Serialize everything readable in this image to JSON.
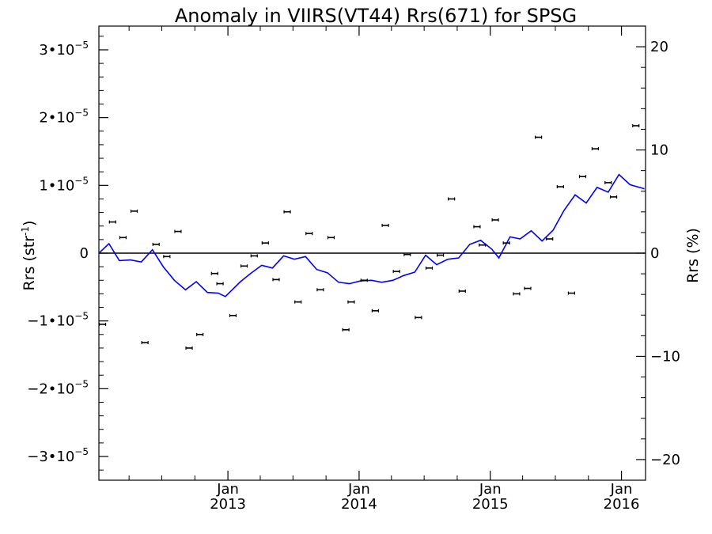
{
  "chart_data": {
    "type": "scatter",
    "title": "Anomaly in VIIRS(VT44) Rrs(671) for SPSG",
    "ylabel_left": {
      "base": "Rrs (str",
      "sup": "-1",
      "end": ")"
    },
    "ylabel_right": "Rrs (%)",
    "x_date_range": [
      "2012-01-08",
      "2016-03-08"
    ],
    "y_left_range": [
      -3.35e-05,
      3.35e-05
    ],
    "y_right_range": [
      -22,
      22
    ],
    "x_ticks": [
      {
        "date": "2013-01-01",
        "month": "Jan",
        "year": "2013"
      },
      {
        "date": "2014-01-01",
        "month": "Jan",
        "year": "2014"
      },
      {
        "date": "2015-01-01",
        "month": "Jan",
        "year": "2015"
      },
      {
        "date": "2016-01-01",
        "month": "Jan",
        "year": "2016"
      }
    ],
    "y_left_ticks": [
      {
        "value": 3e-05,
        "base": "3•10",
        "exp": "−5"
      },
      {
        "value": 2e-05,
        "base": "2•10",
        "exp": "−5"
      },
      {
        "value": 1e-05,
        "base": "1•10",
        "exp": "−5"
      },
      {
        "value": 0,
        "base": "0",
        "exp": ""
      },
      {
        "value": -1e-05,
        "base": "−1•10",
        "exp": "−5"
      },
      {
        "value": -2e-05,
        "base": "−2•10",
        "exp": "−5"
      },
      {
        "value": -3e-05,
        "base": "−3•10",
        "exp": "−5"
      }
    ],
    "y_right_ticks": [
      {
        "value": 20,
        "label": "20"
      },
      {
        "value": 10,
        "label": "10"
      },
      {
        "value": 0,
        "label": "0"
      },
      {
        "value": -10,
        "label": "−10"
      },
      {
        "value": -20,
        "label": "−20"
      }
    ],
    "zero_line": 0,
    "grid": false,
    "colors": {
      "points": "#000000",
      "line": "#0000ff",
      "axes": "#000000"
    },
    "points": [
      {
        "date": "2012-01-18",
        "y": -1.05e-05
      },
      {
        "date": "2012-02-15",
        "y": 4.6e-06
      },
      {
        "date": "2012-03-15",
        "y": 2.3e-06
      },
      {
        "date": "2012-04-15",
        "y": 6.2e-06
      },
      {
        "date": "2012-05-15",
        "y": -1.32e-05
      },
      {
        "date": "2012-06-15",
        "y": 1.3e-06
      },
      {
        "date": "2012-07-15",
        "y": -5e-07
      },
      {
        "date": "2012-08-15",
        "y": 3.2e-06
      },
      {
        "date": "2012-09-15",
        "y": -1.4e-05
      },
      {
        "date": "2012-10-15",
        "y": -1.2e-05
      },
      {
        "date": "2012-11-25",
        "y": -3e-06
      },
      {
        "date": "2012-12-10",
        "y": -4.5e-06
      },
      {
        "date": "2013-01-15",
        "y": -9.2e-06
      },
      {
        "date": "2013-02-15",
        "y": -1.9e-06
      },
      {
        "date": "2013-03-15",
        "y": -4e-07
      },
      {
        "date": "2013-04-15",
        "y": 1.5e-06
      },
      {
        "date": "2013-05-15",
        "y": -3.9e-06
      },
      {
        "date": "2013-06-15",
        "y": 6.1e-06
      },
      {
        "date": "2013-07-15",
        "y": -7.2e-06
      },
      {
        "date": "2013-08-15",
        "y": 2.9e-06
      },
      {
        "date": "2013-09-15",
        "y": -5.4e-06
      },
      {
        "date": "2013-10-15",
        "y": 2.3e-06
      },
      {
        "date": "2013-11-25",
        "y": -1.13e-05
      },
      {
        "date": "2013-12-10",
        "y": -7.2e-06
      },
      {
        "date": "2014-01-15",
        "y": -4e-06
      },
      {
        "date": "2014-02-15",
        "y": -8.5e-06
      },
      {
        "date": "2014-03-15",
        "y": 4.1e-06
      },
      {
        "date": "2014-04-15",
        "y": -2.7e-06
      },
      {
        "date": "2014-05-15",
        "y": -2e-07
      },
      {
        "date": "2014-06-15",
        "y": -9.5e-06
      },
      {
        "date": "2014-07-15",
        "y": -2.2e-06
      },
      {
        "date": "2014-08-15",
        "y": -3e-07
      },
      {
        "date": "2014-09-15",
        "y": 8e-06
      },
      {
        "date": "2014-10-15",
        "y": -5.6e-06
      },
      {
        "date": "2014-11-25",
        "y": 3.9e-06
      },
      {
        "date": "2014-12-10",
        "y": 1.2e-06
      },
      {
        "date": "2015-01-15",
        "y": 4.9e-06
      },
      {
        "date": "2015-02-15",
        "y": 1.5e-06
      },
      {
        "date": "2015-03-15",
        "y": -6e-06
      },
      {
        "date": "2015-04-15",
        "y": -5.2e-06
      },
      {
        "date": "2015-05-15",
        "y": 1.71e-05
      },
      {
        "date": "2015-06-15",
        "y": 2.1e-06
      },
      {
        "date": "2015-07-15",
        "y": 9.8e-06
      },
      {
        "date": "2015-08-15",
        "y": -5.9e-06
      },
      {
        "date": "2015-09-15",
        "y": 1.13e-05
      },
      {
        "date": "2015-10-20",
        "y": 1.54e-05
      },
      {
        "date": "2015-11-25",
        "y": 1.04e-05
      },
      {
        "date": "2015-12-10",
        "y": 8.3e-06
      },
      {
        "date": "2016-02-10",
        "y": 1.88e-05
      }
    ],
    "line": [
      {
        "date": "2012-01-08",
        "y": 0.0
      },
      {
        "date": "2012-02-05",
        "y": 1.4e-06
      },
      {
        "date": "2012-03-05",
        "y": -1.1e-06
      },
      {
        "date": "2012-04-05",
        "y": -1e-06
      },
      {
        "date": "2012-05-05",
        "y": -1.3e-06
      },
      {
        "date": "2012-06-05",
        "y": 5e-07
      },
      {
        "date": "2012-07-05",
        "y": -2e-06
      },
      {
        "date": "2012-08-05",
        "y": -4e-06
      },
      {
        "date": "2012-09-05",
        "y": -5.4e-06
      },
      {
        "date": "2012-10-05",
        "y": -4.2e-06
      },
      {
        "date": "2012-11-05",
        "y": -5.8e-06
      },
      {
        "date": "2012-12-05",
        "y": -5.9e-06
      },
      {
        "date": "2012-12-25",
        "y": -6.4e-06
      },
      {
        "date": "2013-02-05",
        "y": -4.2e-06
      },
      {
        "date": "2013-03-05",
        "y": -3e-06
      },
      {
        "date": "2013-04-05",
        "y": -1.8e-06
      },
      {
        "date": "2013-05-05",
        "y": -2.2e-06
      },
      {
        "date": "2013-06-05",
        "y": -4e-07
      },
      {
        "date": "2013-07-05",
        "y": -9e-07
      },
      {
        "date": "2013-08-05",
        "y": -5e-07
      },
      {
        "date": "2013-09-05",
        "y": -2.4e-06
      },
      {
        "date": "2013-10-05",
        "y": -2.9e-06
      },
      {
        "date": "2013-11-05",
        "y": -4.3e-06
      },
      {
        "date": "2013-12-05",
        "y": -4.5e-06
      },
      {
        "date": "2014-01-05",
        "y": -4.1e-06
      },
      {
        "date": "2014-02-05",
        "y": -4e-06
      },
      {
        "date": "2014-03-05",
        "y": -4.3e-06
      },
      {
        "date": "2014-04-05",
        "y": -4e-06
      },
      {
        "date": "2014-05-05",
        "y": -3.3e-06
      },
      {
        "date": "2014-06-05",
        "y": -2.8e-06
      },
      {
        "date": "2014-07-05",
        "y": -3e-07
      },
      {
        "date": "2014-08-05",
        "y": -1.7e-06
      },
      {
        "date": "2014-09-05",
        "y": -9e-07
      },
      {
        "date": "2014-10-05",
        "y": -7e-07
      },
      {
        "date": "2014-11-05",
        "y": 1.3e-06
      },
      {
        "date": "2014-12-05",
        "y": 1.9e-06
      },
      {
        "date": "2015-01-05",
        "y": 6e-07
      },
      {
        "date": "2015-01-25",
        "y": -7e-07
      },
      {
        "date": "2015-02-25",
        "y": 2.4e-06
      },
      {
        "date": "2015-03-25",
        "y": 2.1e-06
      },
      {
        "date": "2015-04-25",
        "y": 3.3e-06
      },
      {
        "date": "2015-05-25",
        "y": 1.8e-06
      },
      {
        "date": "2015-06-25",
        "y": 3.4e-06
      },
      {
        "date": "2015-07-25",
        "y": 6.3e-06
      },
      {
        "date": "2015-08-25",
        "y": 8.6e-06
      },
      {
        "date": "2015-09-25",
        "y": 7.4e-06
      },
      {
        "date": "2015-10-25",
        "y": 9.7e-06
      },
      {
        "date": "2015-11-25",
        "y": 9e-06
      },
      {
        "date": "2015-12-25",
        "y": 1.16e-05
      },
      {
        "date": "2016-01-25",
        "y": 1.01e-05
      },
      {
        "date": "2016-03-05",
        "y": 9.5e-06
      }
    ]
  }
}
